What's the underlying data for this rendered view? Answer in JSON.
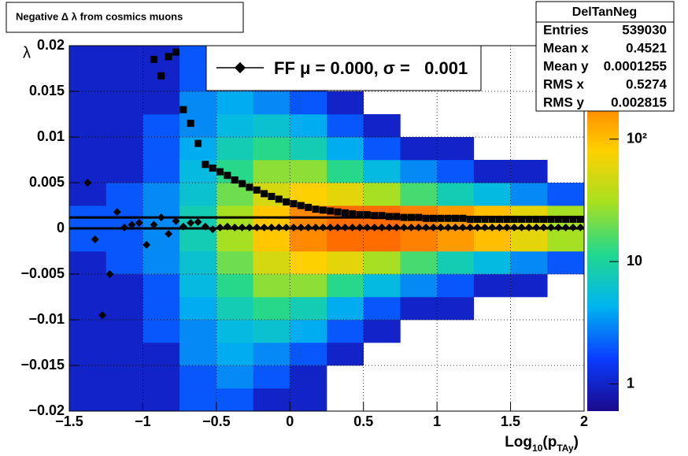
{
  "chart_data": {
    "type": "heatmap",
    "title": "Negative Δ λ from cosmics muons",
    "xlabel": [
      "Log",
      "10",
      "(p",
      "TAy",
      ")"
    ],
    "ylabel": "λ",
    "xlim": [
      -1.5,
      2
    ],
    "ylim": [
      -0.02,
      0.02
    ],
    "xticks": [
      {
        "value": -1.5,
        "label": "−1.5"
      },
      {
        "value": -1,
        "label": "−1"
      },
      {
        "value": -0.5,
        "label": "−0.5"
      },
      0,
      0.5,
      1,
      1.5,
      2
    ],
    "yticks": [
      {
        "value": -0.02,
        "label": "−0.02"
      },
      {
        "value": -0.015,
        "label": "−0.015"
      },
      {
        "value": -0.01,
        "label": "−0.01"
      },
      {
        "value": -0.005,
        "label": "−0.005"
      },
      0,
      0.005,
      0.01,
      0.015,
      0.02
    ],
    "grid": true,
    "zlog": true,
    "zlim": [
      0.6,
      580
    ],
    "zticks": [
      1,
      10,
      {
        "value": 100,
        "label": "10²"
      }
    ],
    "colorscale": [
      "#1a0a8c",
      "#0a3cff",
      "#00b4f0",
      "#20d890",
      "#a8e020",
      "#ffd000",
      "#ff7a00",
      "#ff1a00"
    ],
    "heatmap": {
      "xbins": [
        -1.5,
        -1.25,
        -1,
        -0.75,
        -0.5,
        -0.25,
        0,
        0.25,
        0.5,
        0.75,
        1,
        1.25,
        1.5,
        1.75,
        2
      ],
      "ybins": [
        -0.02,
        -0.0175,
        -0.015,
        -0.0125,
        -0.01,
        -0.0075,
        -0.005,
        -0.0025,
        0,
        0.0025,
        0.005,
        0.0075,
        0.01,
        0.0125,
        0.015,
        0.0175,
        0.02
      ],
      "z": [
        [
          1,
          1,
          1,
          2,
          2,
          1,
          1,
          0,
          0,
          0,
          0,
          0,
          0,
          0
        ],
        [
          1,
          1,
          1,
          2,
          3,
          2,
          1,
          0,
          0,
          0,
          0,
          0,
          0,
          0
        ],
        [
          1,
          1,
          1,
          3,
          4,
          3,
          2,
          1,
          0,
          0,
          0,
          0,
          0,
          0
        ],
        [
          1,
          1,
          2,
          3,
          5,
          6,
          4,
          2,
          1,
          0,
          0,
          0,
          0,
          0
        ],
        [
          1,
          1,
          2,
          4,
          8,
          12,
          8,
          4,
          2,
          1,
          1,
          0,
          0,
          0
        ],
        [
          1,
          1,
          2,
          5,
          12,
          25,
          25,
          12,
          5,
          3,
          2,
          1,
          1,
          0
        ],
        [
          1,
          2,
          3,
          6,
          20,
          50,
          80,
          60,
          30,
          15,
          8,
          5,
          3,
          2
        ],
        [
          2,
          2,
          3,
          8,
          30,
          90,
          180,
          250,
          250,
          200,
          150,
          100,
          60,
          30
        ],
        [
          2,
          2,
          3,
          8,
          30,
          90,
          180,
          250,
          250,
          200,
          150,
          100,
          60,
          30
        ],
        [
          1,
          2,
          3,
          6,
          20,
          50,
          80,
          60,
          30,
          15,
          8,
          5,
          3,
          2
        ],
        [
          1,
          1,
          2,
          5,
          12,
          25,
          25,
          12,
          5,
          3,
          2,
          1,
          1,
          0
        ],
        [
          1,
          1,
          2,
          4,
          8,
          12,
          8,
          4,
          2,
          1,
          1,
          0,
          0,
          0
        ],
        [
          1,
          1,
          2,
          3,
          5,
          6,
          4,
          2,
          1,
          0,
          0,
          0,
          0,
          0
        ],
        [
          1,
          1,
          1,
          3,
          4,
          3,
          2,
          1,
          0,
          0,
          0,
          0,
          0,
          0
        ],
        [
          1,
          1,
          1,
          2,
          3,
          2,
          1,
          0,
          0,
          0,
          0,
          0,
          0,
          0
        ],
        [
          1,
          1,
          1,
          2,
          2,
          1,
          1,
          0,
          0,
          0,
          0,
          0,
          0,
          0
        ]
      ]
    },
    "x": [
      -1.375,
      -1.325,
      -1.275,
      -1.225,
      -1.175,
      -1.125,
      -1.075,
      -1.025,
      -0.975,
      -0.925,
      -0.875,
      -0.825,
      -0.775,
      -0.725,
      -0.675,
      -0.625,
      -0.575,
      -0.525,
      -0.475,
      -0.425,
      -0.375,
      -0.325,
      -0.275,
      -0.225,
      -0.175,
      -0.125,
      -0.075,
      -0.025,
      0.025,
      0.075,
      0.125,
      0.175,
      0.225,
      0.275,
      0.325,
      0.375,
      0.425,
      0.475,
      0.525,
      0.575,
      0.625,
      0.675,
      0.725,
      0.775,
      0.825,
      0.875,
      0.925,
      0.975,
      1.025,
      1.075,
      1.125,
      1.175,
      1.225,
      1.275,
      1.325,
      1.375,
      1.425,
      1.475,
      1.525,
      1.575,
      1.625,
      1.675,
      1.725,
      1.775,
      1.825,
      1.875,
      1.925,
      1.975
    ],
    "series": [
      {
        "marker": "diamond",
        "color": "#000000",
        "values": [
          0.005,
          -0.0012,
          -0.0095,
          -0.005,
          0.0018,
          0.0001,
          0.0004,
          0.0006,
          -0.0018,
          0.0004,
          0.0012,
          -0.0006,
          0.0008,
          0.0002,
          0.0006,
          0.0007,
          0.0002,
          -0.0001,
          0.0001,
          0.0002,
          0.0001,
          0.0001,
          0.0001,
          0.0001,
          0.0001,
          0.0001,
          0.0001,
          0.0001,
          0.0001,
          0.0001,
          0.0001,
          0.0001,
          0.0001,
          0.0001,
          0.0001,
          0.0001,
          0.0001,
          0.0001,
          0.0001,
          0.0001,
          0.0001,
          0.0001,
          0.0001,
          0.0001,
          0.0001,
          0.0001,
          0.0001,
          0.0001,
          0.0001,
          0.0001,
          0.0001,
          0.0001,
          0.0001,
          0.0001,
          0.0001,
          0.0001,
          0.0001,
          0.0001,
          0.0001,
          0.0001,
          0.0001,
          0.0001,
          0.0001,
          0.0001,
          0.0001,
          0.0001,
          0.0001,
          0.0001
        ]
      },
      {
        "marker": "square",
        "color": "#000000",
        "values": [
          null,
          null,
          null,
          null,
          null,
          null,
          null,
          null,
          null,
          0.0185,
          0.0167,
          0.0188,
          0.0193,
          0.013,
          0.0115,
          0.0093,
          0.007,
          0.0066,
          0.0062,
          0.0058,
          0.0053,
          0.0049,
          0.0045,
          0.0042,
          0.0038,
          0.0035,
          0.0032,
          0.0029,
          0.0027,
          0.0025,
          0.0023,
          0.0021,
          0.002,
          0.0019,
          0.0018,
          0.0017,
          0.0016,
          0.0015,
          0.0015,
          0.0014,
          0.0014,
          0.0013,
          0.0013,
          0.0012,
          0.0012,
          0.0012,
          0.0011,
          0.0011,
          0.0011,
          0.0011,
          0.0011,
          0.0011,
          0.001,
          0.001,
          0.001,
          0.001,
          0.001,
          0.001,
          0.001,
          0.001,
          0.001,
          0.001,
          0.001,
          0.001,
          0.001,
          0.001,
          0.001,
          0.001
        ]
      }
    ],
    "hlines": [
      0,
      0.0012
    ],
    "legend": {
      "label": "FF μ = 0.000, σ =   0.001"
    },
    "stats": {
      "title": "DelTanNeg",
      "rows": [
        {
          "label": "Entries",
          "value": "539030"
        },
        {
          "label": "Mean x",
          "value": "0.4521"
        },
        {
          "label": "Mean y",
          "value": "0.0001255"
        },
        {
          "label": "RMS x",
          "value": "0.5274"
        },
        {
          "label": "RMS y",
          "value": "0.002815"
        }
      ]
    }
  }
}
